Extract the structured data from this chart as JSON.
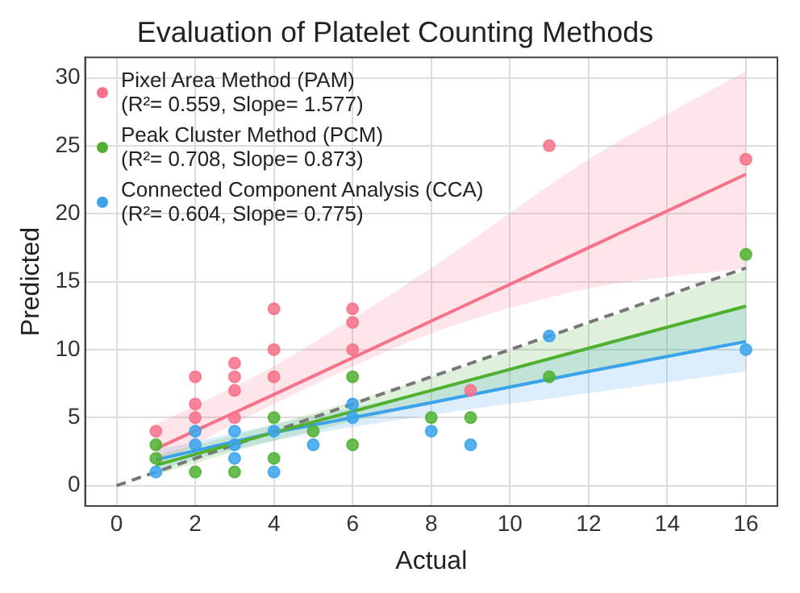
{
  "chart_data": {
    "type": "scatter",
    "title": "Evaluation of Platelet Counting Methods",
    "xlabel": "Actual",
    "ylabel": "Predicted",
    "xlim": [
      -0.8,
      16.8
    ],
    "xticks": [
      0,
      2,
      4,
      6,
      8,
      10,
      12,
      14,
      16
    ],
    "ylim": [
      -1.5,
      31.5
    ],
    "yticks": [
      0,
      5,
      10,
      15,
      20,
      25,
      30
    ],
    "grid": true,
    "legend": "top left",
    "marker": "circle",
    "series": [
      {
        "name": "Pixel Area Method (PAM)\n(R²= 0.559, Slope= 1.577)",
        "color": "#f77189",
        "x": [
          1,
          2,
          2,
          2,
          3,
          3,
          3,
          3,
          4,
          4,
          4,
          6,
          6,
          6,
          9,
          11,
          16
        ],
        "values": [
          4,
          8,
          6,
          5,
          9,
          8,
          7,
          5,
          13,
          10,
          8,
          13,
          12,
          10,
          7,
          25,
          24
        ]
      },
      {
        "name": "Peak Cluster Method (PCM)\n(R²= 0.708, Slope= 0.873)",
        "color": "#50b131",
        "x": [
          1,
          1,
          2,
          3,
          4,
          4,
          5,
          6,
          6,
          8,
          9,
          11,
          16
        ],
        "values": [
          3,
          2,
          1,
          1,
          5,
          2,
          4,
          8,
          3,
          5,
          5,
          8,
          17
        ]
      },
      {
        "name": "Connected Component Analysis (CCA)\n(R²= 0.604, Slope= 0.775)",
        "color": "#3ba3ec",
        "x": [
          1,
          2,
          2,
          3,
          3,
          3,
          4,
          4,
          5,
          6,
          6,
          8,
          9,
          11,
          16
        ],
        "values": [
          1,
          4,
          3,
          4,
          3,
          2,
          4,
          1,
          3,
          6,
          5,
          4,
          3,
          11,
          10
        ]
      },
      {
        "type": "line",
        "color": "#f77189",
        "x": [
          1,
          4,
          8,
          12,
          16
        ],
        "marker": "none",
        "values": [
          2.7,
          6.7,
          12.1,
          17.5,
          22.9
        ],
        "lower": [
          1.5,
          6,
          11.2,
          14.5,
          16
        ],
        "upper": [
          4.5,
          8.8,
          16,
          24,
          30.5
        ]
      },
      {
        "type": "line",
        "color": "#50b131",
        "x": [
          1,
          4,
          8,
          12,
          16
        ],
        "marker": "none",
        "values": [
          1.5,
          3.9,
          7.0,
          10.1,
          13.2
        ],
        "lower": [
          0.8,
          3.3,
          6.0,
          8.3,
          10.7
        ],
        "upper": [
          2.2,
          4.5,
          8.0,
          11.9,
          15.8
        ]
      },
      {
        "type": "line",
        "color": "#3ba3ec",
        "x": [
          1,
          4,
          8,
          12,
          16
        ],
        "marker": "none",
        "values": [
          1.9,
          3.9,
          6.1,
          8.4,
          10.6
        ],
        "lower": [
          1.2,
          3.3,
          5.2,
          6.8,
          8.4
        ],
        "upper": [
          2.6,
          4.5,
          7.0,
          10.0,
          13.1
        ]
      },
      {
        "type": "line",
        "color": "#777777",
        "line_style": "dashed",
        "marker": "none",
        "x": [
          0,
          16
        ],
        "values": [
          0,
          16
        ]
      }
    ]
  }
}
